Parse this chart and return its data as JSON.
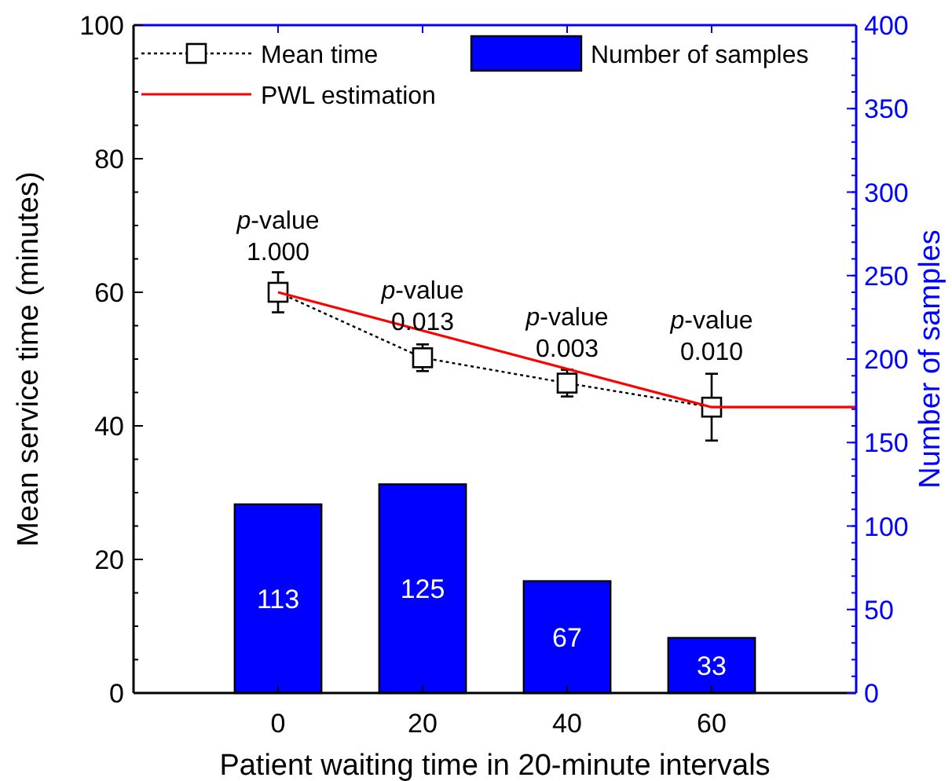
{
  "chart_data": {
    "type": "line",
    "xlabel": "Patient waiting time in 20-minute intervals",
    "ylabel": "Mean service time (minutes)",
    "y2label": "Number of samples",
    "x": [
      0,
      20,
      40,
      60
    ],
    "xlim": [
      -20,
      80
    ],
    "xticks": [
      0,
      20,
      40,
      60
    ],
    "ylim": [
      0,
      100
    ],
    "yticks": [
      0,
      20,
      40,
      60,
      80,
      100
    ],
    "y2lim": [
      0,
      400
    ],
    "y2ticks": [
      0,
      50,
      100,
      150,
      200,
      250,
      300,
      350,
      400
    ],
    "series": [
      {
        "name": "Mean time",
        "color": "#000000",
        "marker": "square",
        "line_style": "dotted",
        "values": [
          60,
          50.2,
          46.4,
          42.8
        ],
        "errors": [
          3,
          2,
          2,
          5
        ]
      },
      {
        "name": "PWL estimation",
        "color": "#ff0000",
        "line_style": "solid",
        "marker": "none",
        "x": [
          0,
          60,
          80
        ],
        "values": [
          60,
          42.8,
          42.8
        ]
      },
      {
        "name": "Number of samples",
        "type": "bar",
        "axis": "y2",
        "color": "#0000ff",
        "values": [
          113,
          125,
          67,
          33
        ],
        "value_labels": [
          "113",
          "125",
          "67",
          "33"
        ]
      }
    ],
    "annotations": [
      {
        "text": "p-value\n1.000",
        "x": 0,
        "y": 63
      },
      {
        "text": "p-value\n0.013",
        "x": 20,
        "y": 52.5
      },
      {
        "text": "p-value\n0.003",
        "x": 40,
        "y": 48.5
      },
      {
        "text": "p-value\n0.010",
        "x": 60,
        "y": 48
      }
    ],
    "legend": "top",
    "grid": false
  }
}
